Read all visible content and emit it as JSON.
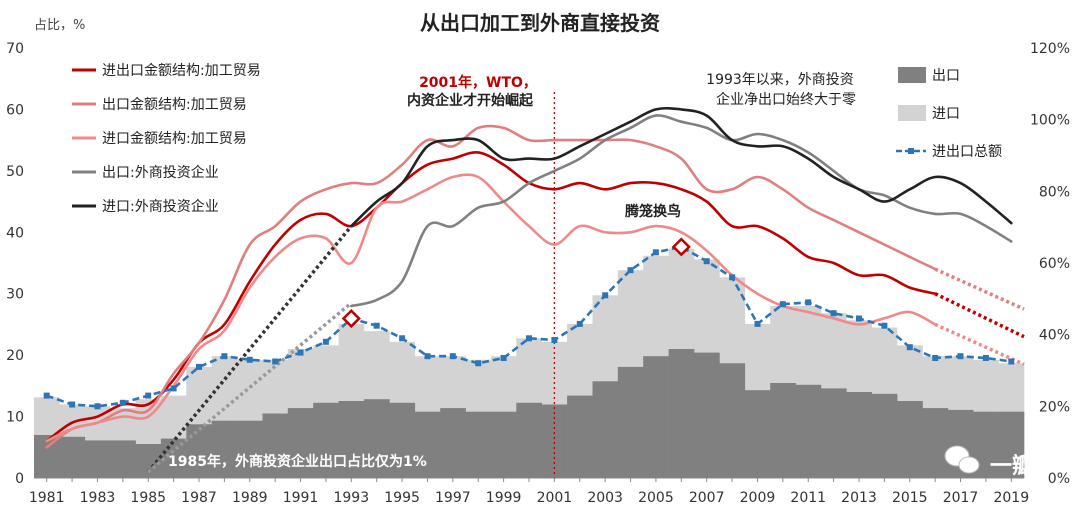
{
  "chart_data": {
    "type": "area",
    "title": "从出口加工到外商直接投资",
    "left_axis": {
      "unit_label": "占比，%",
      "ylim": [
        0,
        70
      ],
      "ticks": [
        "0",
        "10",
        "20",
        "30",
        "40",
        "50",
        "60",
        "70"
      ]
    },
    "right_axis": {
      "ylim": [
        0,
        120
      ],
      "ticks": [
        "0%",
        "20%",
        "40%",
        "60%",
        "80%",
        "100%",
        "120%"
      ]
    },
    "x": [
      1981,
      1982,
      1983,
      1984,
      1985,
      1986,
      1987,
      1988,
      1989,
      1990,
      1991,
      1992,
      1993,
      1994,
      1995,
      1996,
      1997,
      1998,
      1999,
      2000,
      2001,
      2002,
      2003,
      2004,
      2005,
      2006,
      2007,
      2008,
      2009,
      2010,
      2011,
      2012,
      2013,
      2014,
      2015,
      2016,
      2017,
      2018,
      2019
    ],
    "x_tick_labels": [
      "1981",
      "1983",
      "1985",
      "1987",
      "1989",
      "1991",
      "1993",
      "1995",
      "1997",
      "1999",
      "2001",
      "2003",
      "2005",
      "2007",
      "2009",
      "2011",
      "2013",
      "2015",
      "2017",
      "2019"
    ],
    "series": [
      {
        "name": "进出口金额结构:加工贸易",
        "axis": "left",
        "kind": "line",
        "color": "#c00000",
        "x": [
          1981,
          1982,
          1983,
          1984,
          1985,
          1986,
          1987,
          1988,
          1989,
          1990,
          1991,
          1992,
          1993,
          1994,
          1995,
          1996,
          1997,
          1998,
          1999,
          2000,
          2001,
          2002,
          2003,
          2004,
          2005,
          2006,
          2007,
          2008,
          2009,
          2010,
          2011,
          2012,
          2013,
          2014,
          2015,
          2016
        ],
        "values": [
          6,
          9,
          10,
          12,
          12,
          16,
          22,
          25,
          32,
          38,
          42,
          43,
          41,
          44,
          48,
          51,
          52,
          53,
          51,
          48,
          47,
          48,
          47,
          48,
          48,
          47,
          45,
          41,
          41,
          39,
          36,
          35,
          33,
          33,
          31,
          30
        ]
      },
      {
        "name": "出口金额结构:加工贸易",
        "axis": "left",
        "kind": "line",
        "color": "#e07f80",
        "x": [
          1981,
          1982,
          1983,
          1984,
          1985,
          1986,
          1987,
          1988,
          1989,
          1990,
          1991,
          1992,
          1993,
          1994,
          1995,
          1996,
          1997,
          1998,
          1999,
          2000,
          2001,
          2002,
          2003,
          2004,
          2005,
          2006,
          2007,
          2008,
          2009,
          2010,
          2011,
          2012,
          2013,
          2014,
          2015,
          2016
        ],
        "values": [
          5,
          8,
          9,
          11,
          11,
          17,
          22,
          29,
          38,
          41,
          45,
          47,
          48,
          48,
          51,
          55,
          54,
          57,
          57,
          55,
          55,
          55,
          55,
          55,
          54,
          52,
          47,
          47,
          49,
          47,
          44,
          42,
          40,
          38,
          36,
          34
        ]
      },
      {
        "name": "进口金额结构:加工贸易",
        "axis": "left",
        "kind": "line",
        "color": "#f0898a",
        "x": [
          1981,
          1982,
          1983,
          1984,
          1985,
          1986,
          1987,
          1988,
          1989,
          1990,
          1991,
          1992,
          1993,
          1994,
          1995,
          1996,
          1997,
          1998,
          1999,
          2000,
          2001,
          2002,
          2003,
          2004,
          2005,
          2006,
          2007,
          2008,
          2009,
          2010,
          2011,
          2012,
          2013,
          2014,
          2015,
          2016
        ],
        "values": [
          6,
          8,
          9,
          10,
          10,
          15,
          21,
          24,
          31,
          36,
          39,
          39,
          35,
          44,
          45,
          47,
          49,
          49,
          45,
          41,
          38,
          41,
          40,
          40,
          41,
          40,
          37,
          33,
          30,
          28,
          27,
          26,
          25,
          26,
          27,
          25
        ]
      },
      {
        "name": "出口:外商投资企业",
        "axis": "left",
        "kind": "line",
        "color": "#808080",
        "x": [
          1993,
          1994,
          1995,
          1996,
          1997,
          1998,
          1999,
          2000,
          2001,
          2002,
          2003,
          2004,
          2005,
          2006,
          2007,
          2008,
          2009,
          2010,
          2011,
          2012,
          2013,
          2014,
          2015,
          2016,
          2017,
          2018,
          2019
        ],
        "values": [
          28,
          29,
          32,
          41,
          41,
          44,
          45,
          48,
          50,
          52,
          55,
          57,
          59,
          58,
          57,
          55,
          56,
          55,
          53,
          50,
          47,
          46,
          44,
          43,
          43,
          41,
          38.5
        ]
      },
      {
        "name": "进口:外商投资企业",
        "axis": "left",
        "kind": "line",
        "color": "#222222",
        "x": [
          1993,
          1994,
          1995,
          1996,
          1997,
          1998,
          1999,
          2000,
          2001,
          2002,
          2003,
          2004,
          2005,
          2006,
          2007,
          2008,
          2009,
          2010,
          2011,
          2012,
          2013,
          2014,
          2015,
          2016,
          2017,
          2018,
          2019
        ],
        "values": [
          41,
          45,
          48,
          54,
          55,
          55,
          52,
          52,
          52,
          54,
          56,
          58,
          60,
          60,
          59,
          55,
          54,
          54,
          52,
          49,
          47,
          45,
          47,
          49,
          48,
          45,
          41.5
        ]
      },
      {
        "name": "出口",
        "axis": "right",
        "kind": "bar",
        "color": "#808080",
        "values": [
          12,
          11.5,
          10.5,
          10.5,
          9.5,
          11,
          15,
          16,
          16,
          18,
          19.5,
          21,
          21.5,
          22,
          21,
          18.5,
          19.5,
          18.5,
          18.5,
          21,
          20.5,
          23,
          27,
          31,
          34,
          36,
          35,
          32,
          24.5,
          26.5,
          26,
          25,
          24,
          23.5,
          21.5,
          19.5,
          19,
          18.5,
          18.5
        ]
      },
      {
        "name": "进口",
        "axis": "right",
        "kind": "bar",
        "color": "#d3d3d3",
        "values": [
          22.5,
          20.5,
          20,
          19.5,
          22,
          23,
          31,
          34,
          33,
          33,
          36,
          37,
          43,
          41,
          38,
          34,
          34,
          33,
          34,
          39,
          38,
          43,
          51,
          58,
          62,
          64,
          61,
          56,
          43,
          48,
          48,
          46,
          44,
          42,
          37,
          34,
          34,
          33,
          32
        ]
      },
      {
        "name": "进出口总额",
        "axis": "right",
        "kind": "line",
        "color": "#2e75b6",
        "style": "dashed",
        "values": [
          23,
          20.5,
          20,
          21,
          23,
          25,
          31,
          34,
          33,
          32.5,
          35,
          38,
          44.5,
          42.5,
          39,
          34,
          34,
          32,
          33.5,
          39,
          38.5,
          43,
          51,
          58,
          63,
          64.5,
          60.5,
          56,
          43,
          48.5,
          49,
          46,
          44.5,
          42.5,
          36.5,
          33.5,
          34,
          33.5,
          32.5
        ]
      },
      {
        "name": "进出口金额结构:加工贸易 预测",
        "axis": "left",
        "kind": "dotted",
        "color": "#c00000",
        "x": [
          2016,
          2019.5
        ],
        "values": [
          30,
          23
        ]
      },
      {
        "name": "出口金额结构:加工贸易 预测",
        "axis": "left",
        "kind": "dotted",
        "color": "#e07f80",
        "x": [
          2016,
          2019.5
        ],
        "values": [
          34,
          27.5
        ]
      },
      {
        "name": "进口金额结构:加工贸易 预测",
        "axis": "left",
        "kind": "dotted",
        "color": "#f0898a",
        "x": [
          2016,
          2019.5
        ],
        "values": [
          25,
          18.5
        ]
      },
      {
        "name": "进口外商投资企业 回溯",
        "axis": "left",
        "kind": "dotted",
        "color": "#333333",
        "x": [
          1985,
          1993
        ],
        "values": [
          1,
          41
        ]
      },
      {
        "name": "出口外商投资企业 回溯",
        "axis": "left",
        "kind": "dotted",
        "color": "#999999",
        "x": [
          1985,
          1993
        ],
        "values": [
          1,
          28.5
        ]
      }
    ],
    "highlight_markers": [
      {
        "series": "进出口总额",
        "x": 1993,
        "value": 44.5
      },
      {
        "series": "进出口总额",
        "x": 2006,
        "value": 64.5
      }
    ],
    "vline": {
      "x": 2001,
      "color": "#c00000"
    },
    "legend": {
      "left": [
        "进出口金额结构:加工贸易",
        "出口金额结构:加工贸易",
        "进口金额结构:加工贸易",
        "出口:外商投资企业",
        "进口:外商投资企业"
      ],
      "right": [
        "出口",
        "进口",
        "进出口总额"
      ]
    },
    "annotations": {
      "wto_line1": "2001年，WTO，",
      "wto_line2": "内资企业才开始崛起",
      "fdi_line1": "1993年以来，外商投资",
      "fdi_line2": "企业净出口始终大于零",
      "center": "腾笼换鸟",
      "bottom": "1985年，外商投资企业出口占比仅为1%"
    },
    "watermark": "一瓣"
  }
}
